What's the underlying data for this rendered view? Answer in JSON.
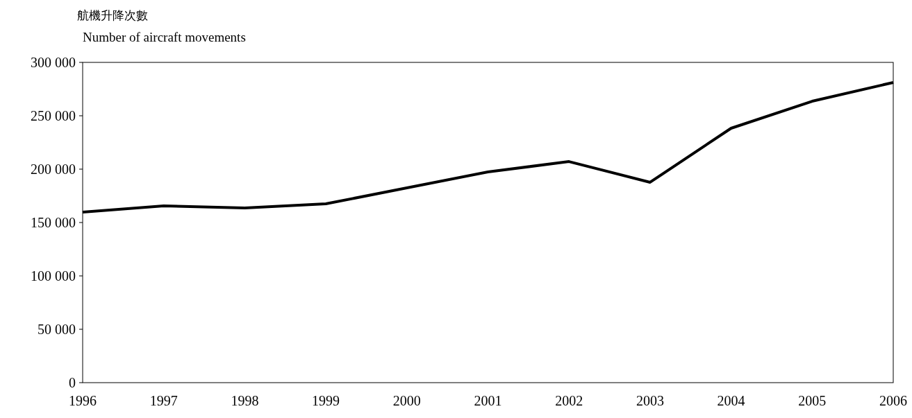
{
  "chart_data": {
    "type": "line",
    "title": "航機升降次數",
    "subtitle": "Number of aircraft movements",
    "x": [
      1996,
      1997,
      1998,
      1999,
      2000,
      2001,
      2002,
      2003,
      2004,
      2005,
      2006
    ],
    "series": [
      {
        "color": "#000000",
        "values": [
          159700,
          165600,
          163600,
          167500,
          182500,
          197400,
          207100,
          187700,
          238300,
          263600,
          281200
        ]
      }
    ],
    "xlim": [
      1996,
      2006
    ],
    "xticks": [
      1996,
      1997,
      1998,
      1999,
      2000,
      2001,
      2002,
      2003,
      2004,
      2005,
      2006
    ],
    "ylim": [
      0,
      300000
    ],
    "yticks": [
      {
        "value": 0,
        "label": "0"
      },
      {
        "value": 50000,
        "label": "50 000"
      },
      {
        "value": 100000,
        "label": "100 000"
      },
      {
        "value": 150000,
        "label": "150 000"
      },
      {
        "value": 200000,
        "label": "200 000"
      },
      {
        "value": 250000,
        "label": "250 000"
      },
      {
        "value": 300000,
        "label": "300 000"
      }
    ],
    "marker": "none",
    "line_style": "solid"
  }
}
